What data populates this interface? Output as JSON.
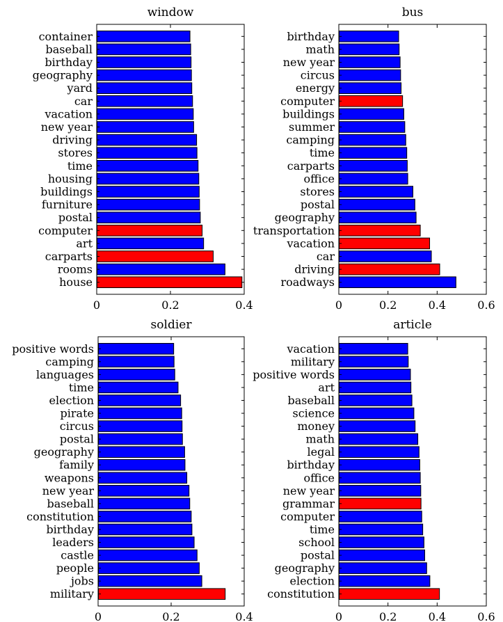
{
  "colors": {
    "blue": "#0000ff",
    "red": "#ff0000",
    "axis": "#000000"
  },
  "chart_data": [
    {
      "type": "bar",
      "orientation": "horizontal",
      "title": "window",
      "xlim": [
        0,
        0.4
      ],
      "xticks": [
        0,
        0.2,
        0.4
      ],
      "categories": [
        "container",
        "baseball",
        "birthday",
        "geography",
        "yard",
        "car",
        "vacation",
        "new year",
        "driving",
        "stores",
        "time",
        "housing",
        "buildings",
        "furniture",
        "postal",
        "computer",
        "art",
        "carparts",
        "rooms",
        "house"
      ],
      "values": [
        0.252,
        0.254,
        0.255,
        0.256,
        0.257,
        0.259,
        0.261,
        0.262,
        0.27,
        0.271,
        0.274,
        0.276,
        0.277,
        0.278,
        0.28,
        0.285,
        0.289,
        0.315,
        0.347,
        0.393
      ],
      "highlight": [
        false,
        false,
        false,
        false,
        false,
        false,
        false,
        false,
        false,
        false,
        false,
        false,
        false,
        false,
        false,
        true,
        false,
        true,
        false,
        true
      ]
    },
    {
      "type": "bar",
      "orientation": "horizontal",
      "title": "bus",
      "xlim": [
        0,
        0.6
      ],
      "xticks": [
        0,
        0.2,
        0.4,
        0.6
      ],
      "categories": [
        "birthday",
        "math",
        "new year",
        "circus",
        "energy",
        "computer",
        "buildings",
        "summer",
        "camping",
        "time",
        "carparts",
        "office",
        "stores",
        "postal",
        "geography",
        "transportation",
        "vacation",
        "car",
        "driving",
        "roadways"
      ],
      "values": [
        0.242,
        0.244,
        0.248,
        0.25,
        0.252,
        0.258,
        0.263,
        0.267,
        0.271,
        0.275,
        0.277,
        0.279,
        0.3,
        0.308,
        0.313,
        0.33,
        0.368,
        0.375,
        0.409,
        0.475
      ],
      "highlight": [
        false,
        false,
        false,
        false,
        false,
        true,
        false,
        false,
        false,
        false,
        false,
        false,
        false,
        false,
        false,
        true,
        true,
        false,
        true,
        false
      ]
    },
    {
      "type": "bar",
      "orientation": "horizontal",
      "title": "soldier",
      "xlim": [
        0,
        0.4
      ],
      "xticks": [
        0,
        0.2,
        0.4
      ],
      "categories": [
        "positive words",
        "camping",
        "languages",
        "time",
        "election",
        "pirate",
        "circus",
        "postal",
        "geography",
        "family",
        "weapons",
        "new year",
        "baseball",
        "constitution",
        "birthday",
        "leaders",
        "castle",
        "people",
        "jobs",
        "military"
      ],
      "values": [
        0.206,
        0.207,
        0.209,
        0.218,
        0.225,
        0.228,
        0.229,
        0.23,
        0.236,
        0.237,
        0.242,
        0.248,
        0.25,
        0.254,
        0.256,
        0.262,
        0.27,
        0.276,
        0.283,
        0.347
      ],
      "highlight": [
        false,
        false,
        false,
        false,
        false,
        false,
        false,
        false,
        false,
        false,
        false,
        false,
        false,
        false,
        false,
        false,
        false,
        false,
        false,
        true
      ]
    },
    {
      "type": "bar",
      "orientation": "horizontal",
      "title": "article",
      "xlim": [
        0,
        0.6
      ],
      "xticks": [
        0,
        0.2,
        0.4,
        0.6
      ],
      "categories": [
        "vacation",
        "military",
        "positive words",
        "art",
        "baseball",
        "science",
        "money",
        "math",
        "legal",
        "birthday",
        "office",
        "new year",
        "grammar",
        "computer",
        "time",
        "school",
        "postal",
        "geography",
        "election",
        "constitution"
      ],
      "values": [
        0.279,
        0.281,
        0.29,
        0.292,
        0.296,
        0.304,
        0.309,
        0.32,
        0.325,
        0.328,
        0.33,
        0.332,
        0.333,
        0.336,
        0.34,
        0.345,
        0.348,
        0.356,
        0.369,
        0.408
      ],
      "highlight": [
        false,
        false,
        false,
        false,
        false,
        false,
        false,
        false,
        false,
        false,
        false,
        false,
        true,
        false,
        false,
        false,
        false,
        false,
        false,
        true
      ]
    }
  ]
}
